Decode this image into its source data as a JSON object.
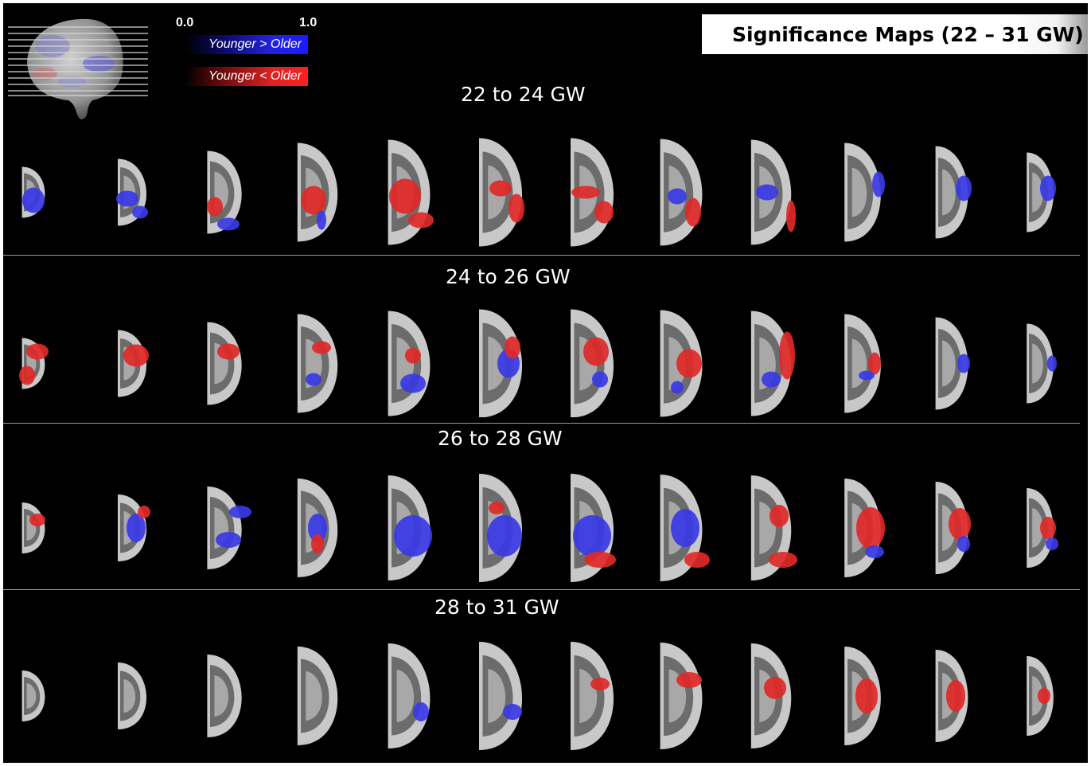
{
  "title": "Significance Maps (22 – 31 GW)",
  "scale": {
    "min": "0.0",
    "max": "1.0"
  },
  "legend": [
    {
      "label": "Younger > Older",
      "color": "#1a1aff"
    },
    {
      "label": "Younger < Older",
      "color": "#ff2020"
    }
  ],
  "rows": [
    {
      "label": "22 to 24 GW"
    },
    {
      "label": "24 to 26 GW"
    },
    {
      "label": "26 to 28 GW"
    },
    {
      "label": "28 to 31 GW"
    }
  ],
  "colors": {
    "blue": "#3a3ae6",
    "red": "#e02828",
    "background": "#000000"
  }
}
